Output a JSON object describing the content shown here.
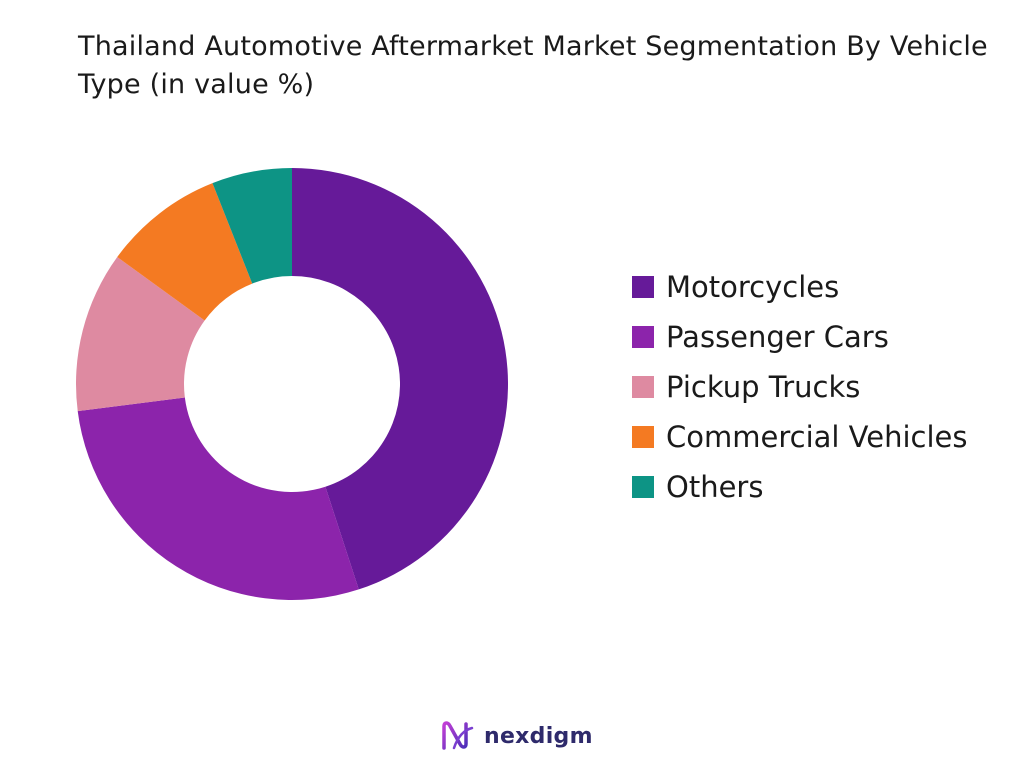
{
  "chart_data": {
    "type": "pie",
    "variant": "donut",
    "title": "Thailand Automotive Aftermarket Market Segmentation By Vehicle Type (in value %)",
    "categories": [
      "Motorcycles",
      "Passenger Cars",
      "Pickup Trucks",
      "Commercial Vehicles",
      "Others"
    ],
    "values": [
      45,
      28,
      12,
      9,
      6
    ],
    "colors": [
      "#661a99",
      "#8c24ab",
      "#de8aa1",
      "#f47a22",
      "#0d9485"
    ],
    "legend": "right"
  },
  "brand": {
    "name": "nexdigm",
    "icon": "nexdigm-logo-icon"
  }
}
